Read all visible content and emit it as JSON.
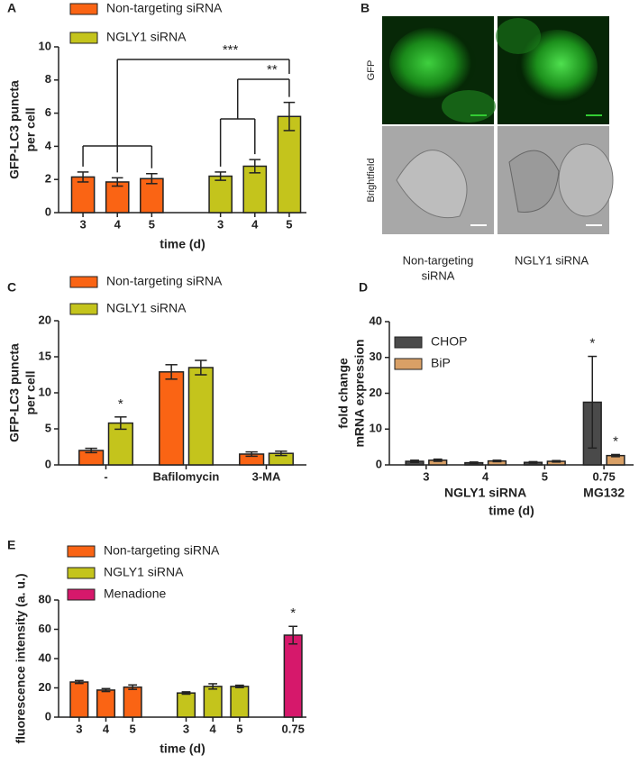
{
  "chart_data": [
    {
      "type": "bar",
      "panel": "A",
      "grouped": false,
      "categories": [
        "3",
        "4",
        "5",
        null,
        "3",
        "4",
        "5"
      ],
      "series": [
        {
          "name": "Non-targeting siRNA",
          "color": "#fa6414",
          "values": [
            2.15,
            1.85,
            2.05,
            null,
            null,
            null,
            null
          ],
          "errors": [
            0.3,
            0.25,
            0.3,
            null,
            null,
            null,
            null
          ]
        },
        {
          "name": "NGLY1 siRNA",
          "color": "#c4c41c",
          "values": [
            null,
            null,
            null,
            null,
            2.2,
            2.8,
            5.8
          ],
          "errors": [
            null,
            null,
            null,
            null,
            0.25,
            0.4,
            0.85
          ]
        }
      ],
      "ylim": [
        0,
        10
      ],
      "yticks": [
        0,
        2,
        4,
        6,
        8,
        10
      ],
      "ylabel": [
        "GFP-LC3 puncta",
        "per cell"
      ],
      "xlabel": "time (d)",
      "annotations": [
        "***",
        "**"
      ]
    },
    {
      "type": "bar",
      "panel": "C",
      "grouped": true,
      "categories": [
        "-",
        "Bafilomycin",
        "3-MA"
      ],
      "series": [
        {
          "name": "Non-targeting siRNA",
          "color": "#fa6414",
          "values": [
            2.0,
            12.9,
            1.5
          ],
          "errors": [
            0.3,
            1.0,
            0.3
          ],
          "marks": [
            null,
            null,
            null
          ]
        },
        {
          "name": "NGLY1 siRNA",
          "color": "#c4c41c",
          "values": [
            5.8,
            13.5,
            1.6
          ],
          "errors": [
            0.85,
            1.0,
            0.3
          ],
          "marks": [
            "*",
            null,
            null
          ]
        }
      ],
      "ylim": [
        0,
        20
      ],
      "yticks": [
        0,
        5,
        10,
        15,
        20
      ],
      "ylabel": [
        "GFP-LC3 puncta",
        "per cell"
      ]
    },
    {
      "type": "bar",
      "panel": "D",
      "grouped": true,
      "categories": [
        "3",
        "4",
        "5",
        "0.75"
      ],
      "group_labels": [
        "NGLY1 siRNA",
        "MG132"
      ],
      "series": [
        {
          "name": "CHOP",
          "color": "#4a4a4a",
          "values": [
            1.0,
            0.6,
            0.7,
            17.5
          ],
          "errors": [
            0.3,
            0.2,
            0.2,
            12.8
          ],
          "marks": [
            null,
            null,
            null,
            "*"
          ]
        },
        {
          "name": "BiP",
          "color": "#d9a066",
          "values": [
            1.3,
            1.1,
            1.0,
            2.6
          ],
          "errors": [
            0.3,
            0.2,
            0.2,
            0.3
          ],
          "marks": [
            null,
            null,
            null,
            "*"
          ]
        }
      ],
      "ylim": [
        0,
        40
      ],
      "yticks": [
        0,
        10,
        20,
        30,
        40
      ],
      "ylabel": [
        "fold change",
        "mRNA expression"
      ],
      "xlabel": "time (d)"
    },
    {
      "type": "bar",
      "panel": "E",
      "grouped": false,
      "categories": [
        "3",
        "4",
        "5",
        null,
        "3",
        "4",
        "5",
        null,
        "0.75"
      ],
      "series": [
        {
          "name": "Non-targeting siRNA",
          "color": "#fa6414",
          "values": [
            24,
            18.5,
            20.5,
            null,
            null,
            null,
            null,
            null,
            null
          ],
          "errors": [
            1.0,
            1.0,
            1.5,
            null,
            null,
            null,
            null,
            null,
            null
          ]
        },
        {
          "name": "NGLY1 siRNA",
          "color": "#c4c41c",
          "values": [
            null,
            null,
            null,
            null,
            16.5,
            21,
            21,
            null,
            null
          ],
          "errors": [
            null,
            null,
            null,
            null,
            0.8,
            1.8,
            0.8,
            null,
            null
          ]
        },
        {
          "name": "Menadione",
          "color": "#d6186b",
          "values": [
            null,
            null,
            null,
            null,
            null,
            null,
            null,
            null,
            56
          ],
          "errors": [
            null,
            null,
            null,
            null,
            null,
            null,
            null,
            null,
            6
          ],
          "marks": [
            null,
            null,
            null,
            null,
            null,
            null,
            null,
            null,
            "*"
          ]
        }
      ],
      "ylim": [
        0,
        80
      ],
      "yticks": [
        0,
        20,
        40,
        60,
        80
      ],
      "ylabel": [
        "fluorescence intensity (a. u.)"
      ],
      "xlabel": "time (d)"
    }
  ],
  "figure_b": {
    "panel": "B",
    "rows": [
      "GFP",
      "Brightfield"
    ],
    "columns": [
      [
        "Non-targeting",
        "siRNA"
      ],
      [
        "NGLY1 siRNA"
      ]
    ]
  }
}
